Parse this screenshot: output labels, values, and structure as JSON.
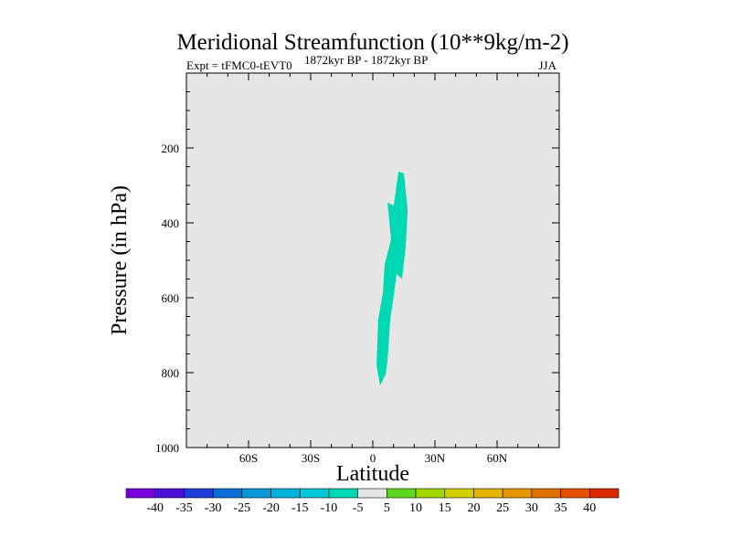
{
  "chart_data": {
    "type": "contour",
    "title": "Meridional Streamfunction (10**9kg/m-2)",
    "subtitle_left": "Expt = tFMC0-tEVT0",
    "subtitle_center": "1872kyr BP - 1872kyr BP",
    "subtitle_right": "JJA",
    "xlabel": "Latitude",
    "ylabel": "Pressure (in hPa)",
    "xlim": [
      -90,
      90
    ],
    "ylim": [
      0,
      1000
    ],
    "y_inverted": true,
    "xticks": [
      {
        "v": -60,
        "label": "60S"
      },
      {
        "v": -30,
        "label": "30S"
      },
      {
        "v": 0,
        "label": "0"
      },
      {
        "v": 30,
        "label": "30N"
      },
      {
        "v": 60,
        "label": "60N"
      }
    ],
    "yticks": [
      {
        "v": 200,
        "label": "200"
      },
      {
        "v": 400,
        "label": "400"
      },
      {
        "v": 600,
        "label": "600"
      },
      {
        "v": 800,
        "label": "800"
      },
      {
        "v": 1000,
        "label": "1000"
      }
    ],
    "background_color": "#e6e6e6",
    "filled_region": {
      "range": "-10 to -5",
      "color": "#00d8b4",
      "polygon": [
        [
          12.4,
          263
        ],
        [
          15.0,
          268
        ],
        [
          16.8,
          366
        ],
        [
          15.9,
          463
        ],
        [
          14.1,
          549
        ],
        [
          11.5,
          537
        ],
        [
          9.7,
          610
        ],
        [
          8.4,
          659
        ],
        [
          7.1,
          768
        ],
        [
          6.2,
          805
        ],
        [
          3.5,
          834
        ],
        [
          1.8,
          780
        ],
        [
          2.6,
          659
        ],
        [
          4.9,
          585
        ],
        [
          5.7,
          512
        ],
        [
          8.8,
          444
        ],
        [
          7.1,
          346
        ],
        [
          10.1,
          354
        ]
      ]
    },
    "colorbar": {
      "labels": [
        "-40",
        "-35",
        "-30",
        "-25",
        "-20",
        "-15",
        "-10",
        "-5",
        "5",
        "10",
        "15",
        "20",
        "25",
        "30",
        "35",
        "40"
      ],
      "colors": [
        "#7a00dc",
        "#4a10d8",
        "#1e3cd8",
        "#0a6ed8",
        "#0a96d8",
        "#00b2dc",
        "#00c8d8",
        "#00d8b4",
        "#e6e6e6",
        "#5cd81e",
        "#a0d800",
        "#d2d000",
        "#e6b400",
        "#e69600",
        "#e07000",
        "#e05000",
        "#dc2800"
      ]
    }
  }
}
